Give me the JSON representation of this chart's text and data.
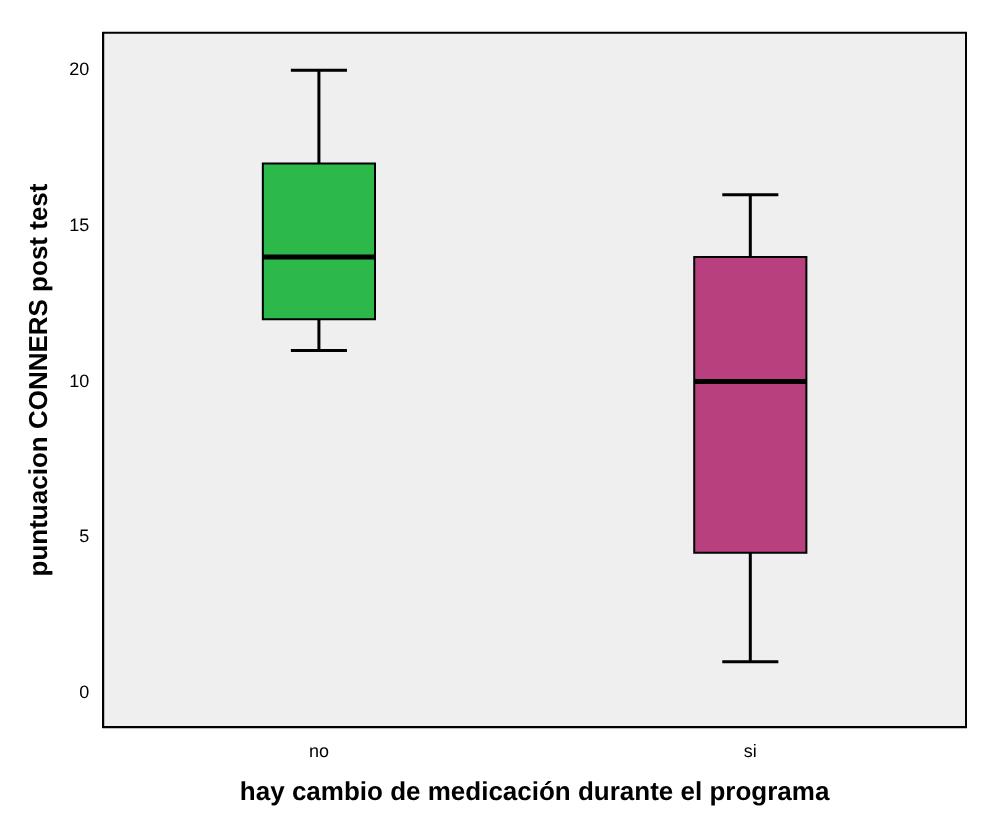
{
  "chart_data": {
    "type": "box",
    "xlabel": "hay cambio de medicación durante el programa",
    "ylabel": "puntuacion CONNERS post test",
    "categories": [
      "no",
      "si"
    ],
    "colors": [
      "#2db84a",
      "#b8407e"
    ],
    "boxes": [
      {
        "low": 11,
        "q1": 12,
        "median": 14,
        "q3": 17,
        "high": 20
      },
      {
        "low": 1,
        "q1": 4.5,
        "median": 10,
        "q3": 14,
        "high": 16
      }
    ],
    "ylim": [
      -1.1,
      21.2
    ],
    "yticks": [
      0,
      5,
      10,
      15,
      20
    ],
    "grid": false,
    "legend": false
  }
}
